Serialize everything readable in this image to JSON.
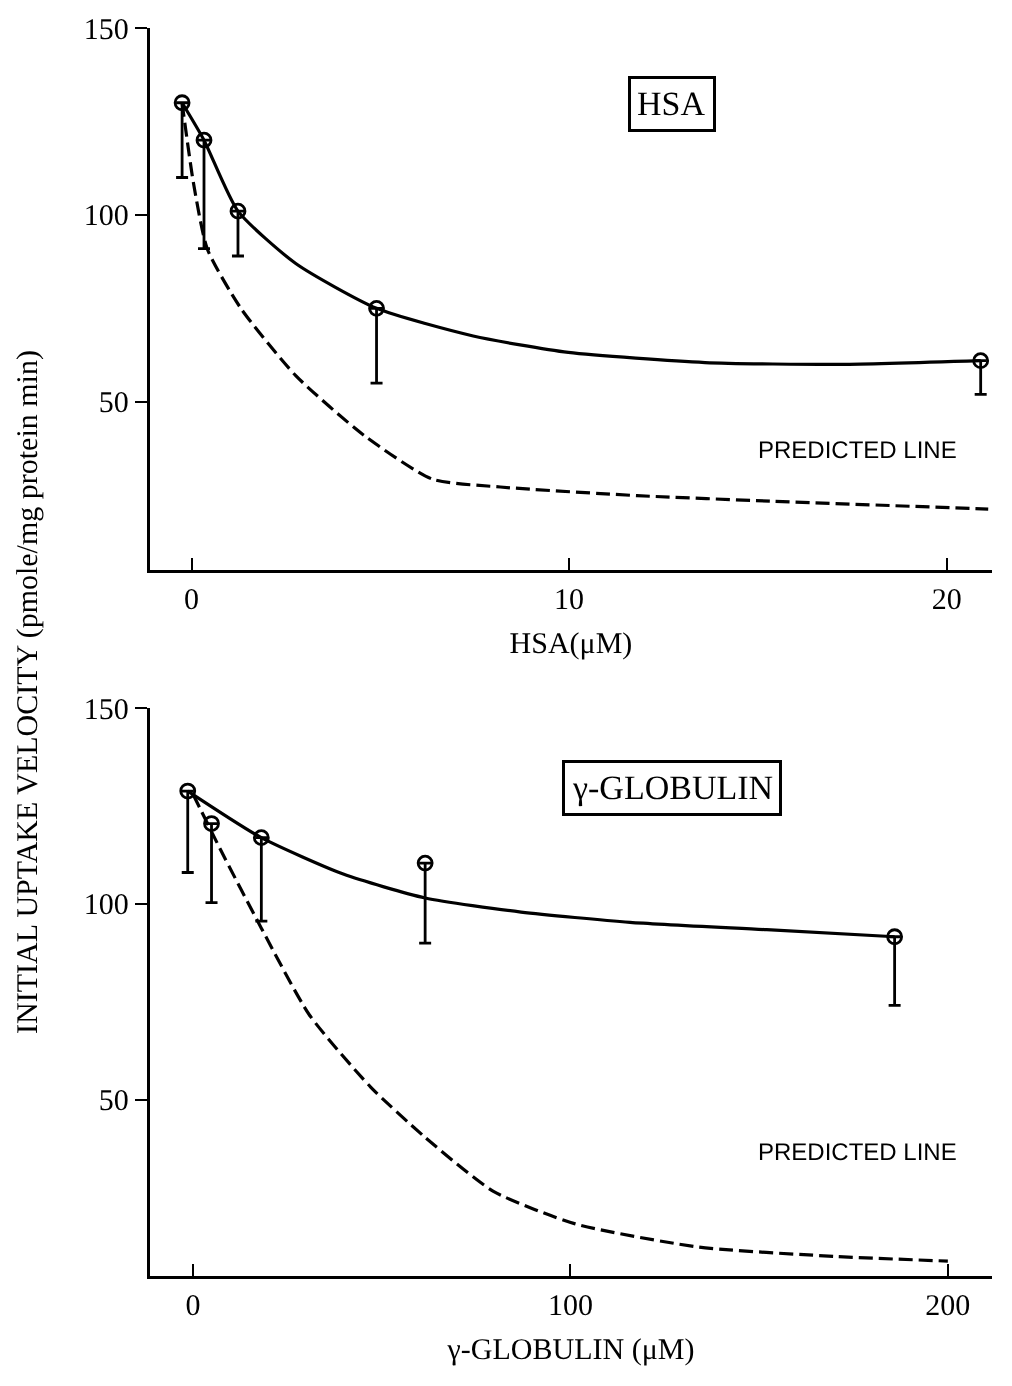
{
  "chart_data": [
    {
      "type": "line",
      "ylabel": "INITIAL UPTAKE VELOCITY (pmole/mg protein min)",
      "xlabel": "HSA(μM)",
      "annotations": [
        "HSA",
        "PREDICTED LINE"
      ],
      "xlim": [
        -1.1,
        21.2
      ],
      "xticks": [
        0,
        10,
        20
      ],
      "ylim": [
        5,
        150
      ],
      "yticks": [
        50,
        100,
        150
      ],
      "grid": false,
      "series": [
        {
          "type": "scatter",
          "color": "#000000",
          "marker": "circle",
          "x": [
            -0.25,
            0.33,
            1.23,
            4.9,
            20.9
          ],
          "values": [
            130,
            120,
            101,
            75,
            61
          ],
          "errors": [
            [
              110,
              130
            ],
            [
              91,
              120
            ],
            [
              89,
              101
            ],
            [
              55,
              75
            ],
            [
              52,
              61
            ]
          ]
        },
        {
          "color": "#000000",
          "line_style": "solid",
          "x": [
            -0.25,
            0.33,
            1.23,
            2.76,
            4.9,
            7.46,
            9.98,
            13.6,
            17.2,
            20.9
          ],
          "values": [
            130,
            120,
            101,
            87,
            75,
            67.6,
            63.2,
            60.5,
            60,
            61
          ]
        },
        {
          "color": "#000000",
          "line_style": "dashed",
          "x": [
            -0.25,
            0.05,
            0.42,
            1.32,
            2.76,
            4.57,
            6.38,
            8.18,
            11.8,
            15.4,
            21.1
          ],
          "values": [
            130,
            108.6,
            90.8,
            74.8,
            57,
            41,
            29.3,
            27.2,
            24.9,
            23.4,
            21.3
          ]
        }
      ]
    },
    {
      "type": "line",
      "xlabel": "γ-GLOBULIN (μM)",
      "annotations": [
        "γ-GLOBULIN",
        "PREDICTED LINE"
      ],
      "xlim": [
        -11.4,
        211.7
      ],
      "xticks": [
        0,
        100,
        200
      ],
      "ylim": [
        5,
        150
      ],
      "yticks": [
        50,
        100,
        150
      ],
      "grid": false,
      "series": [
        {
          "type": "scatter",
          "color": "#000000",
          "marker": "circle",
          "x": [
            -1.4,
            4.9,
            18.1,
            61.5,
            185.9
          ],
          "values": [
            128.8,
            120.5,
            116.9,
            110.4,
            91.6
          ],
          "errors": [
            [
              108,
              128.8
            ],
            [
              100.3,
              120.5
            ],
            [
              95.6,
              116.9
            ],
            [
              90,
              110.4
            ],
            [
              74.1,
              91.6
            ]
          ]
        },
        {
          "color": "#000000",
          "line_style": "solid",
          "x": [
            -1.4,
            18.1,
            39.8,
            61.5,
            86.9,
            115.8,
            152,
            185.9
          ],
          "values": [
            128.8,
            116.9,
            107.6,
            101.5,
            97.9,
            95.3,
            93.4,
            91.6
          ]
        },
        {
          "color": "#000000",
          "line_style": "dashed",
          "x": [
            0,
            7.2,
            18.1,
            30.8,
            47,
            61.5,
            79.6,
            101.3,
            133.9,
            170,
            200
          ],
          "values": [
            128,
            114,
            93.8,
            71.7,
            53.3,
            40.4,
            26.6,
            18.3,
            12.4,
            10,
            8.8
          ]
        }
      ]
    }
  ]
}
